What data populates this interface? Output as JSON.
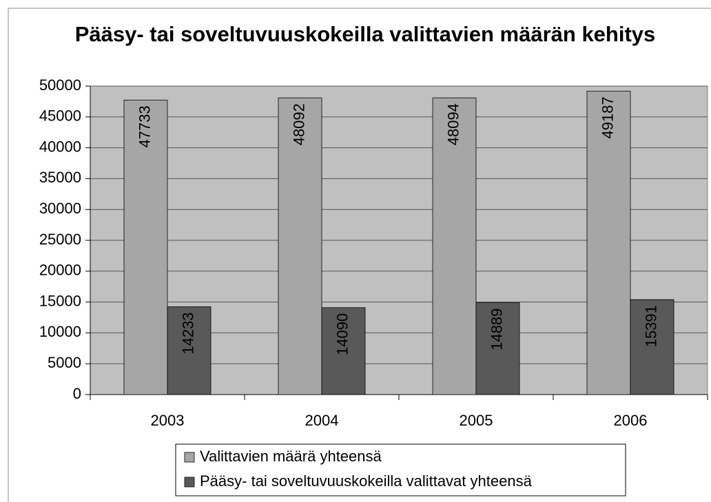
{
  "chart_data": {
    "type": "bar",
    "title": "Pääsy- tai soveltuvuuskokeilla valittavien määrän kehitys",
    "categories": [
      "2003",
      "2004",
      "2005",
      "2006"
    ],
    "series": [
      {
        "name": "Valittavien määrä yhteensä",
        "color": "#a6a6a6",
        "values": [
          47733,
          48092,
          48094,
          49187
        ]
      },
      {
        "name": "Pääsy- tai soveltuvuuskokeilla valittavat yhteensä",
        "color": "#595959",
        "values": [
          14233,
          14090,
          14889,
          15391
        ]
      }
    ],
    "ylim": [
      0,
      50000
    ],
    "yticks": [
      0,
      5000,
      10000,
      15000,
      20000,
      25000,
      30000,
      35000,
      40000,
      45000,
      50000
    ],
    "grid": true,
    "legend": "bottom"
  }
}
